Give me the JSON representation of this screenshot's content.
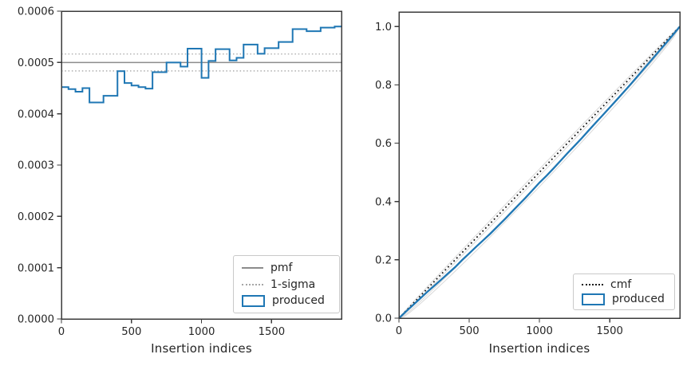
{
  "figure": {
    "background": "#ffffff",
    "text_color": "#262626",
    "spine_color": "#3b3b3b"
  },
  "chart_data": [
    {
      "type": "step",
      "title": "",
      "xlabel": "Insertion indices",
      "ylabel": "",
      "xlim": [
        0,
        1999
      ],
      "ylim": [
        0,
        0.0006
      ],
      "grid": false,
      "legend_position": "lower right",
      "xticks": [
        0,
        500,
        1000,
        1500
      ],
      "ytick_values": [
        0,
        0.0001,
        0.0002,
        0.0003,
        0.0004,
        0.0005,
        0.0006
      ],
      "ytick_labels": [
        "0.0000",
        "0.0001",
        "0.0002",
        "0.0003",
        "0.0004",
        "0.0005",
        "0.0006"
      ],
      "series": {
        "produced": {
          "color": "#1f77b4",
          "bin_start": 0,
          "bin_width": 50,
          "values": [
            0.000452,
            0.000448,
            0.000443,
            0.00045,
            0.000422,
            0.000422,
            0.000435,
            0.000435,
            0.000483,
            0.00046,
            0.000455,
            0.000452,
            0.000449,
            0.000481,
            0.000481,
            0.0005,
            0.0005,
            0.000492,
            0.000527,
            0.000527,
            0.00047,
            0.000503,
            0.000526,
            0.000526,
            0.000504,
            0.000509,
            0.000535,
            0.000535,
            0.000517,
            0.000528,
            0.000528,
            0.00054,
            0.00054,
            0.000565,
            0.000565,
            0.000561,
            0.000561,
            0.000568,
            0.000568,
            0.00057
          ]
        },
        "pmf": {
          "color": "#8c8c8c",
          "style": "solid",
          "value": 0.0005
        },
        "one_sigma": {
          "color": "#a6a6a6",
          "style": "dotted",
          "upper": 0.0005165,
          "lower": 0.0004835
        }
      },
      "legend": [
        {
          "label": "pmf",
          "swatch": "line-solid"
        },
        {
          "label": "1-sigma",
          "swatch": "line-dotted"
        },
        {
          "label": "produced",
          "swatch": "rect-outline"
        }
      ]
    },
    {
      "type": "line",
      "title": "",
      "xlabel": "Insertion indices",
      "ylabel": "",
      "xlim": [
        0,
        1999
      ],
      "ylim": [
        0,
        1.05
      ],
      "grid": false,
      "legend_position": "lower right",
      "xticks": [
        0,
        500,
        1000,
        1500
      ],
      "ytick_values": [
        0,
        0.2,
        0.4,
        0.6,
        0.8,
        1.0
      ],
      "ytick_labels": [
        "0.0",
        "0.2",
        "0.4",
        "0.6",
        "0.8",
        "1.0"
      ],
      "series": {
        "cmf": {
          "color": "#1a1a1a",
          "style": "dotted",
          "x": [
            0,
            1999
          ],
          "y": [
            0,
            1.0
          ]
        },
        "produced": {
          "color": "#1f77b4",
          "x": [
            0,
            50,
            100,
            150,
            200,
            250,
            300,
            350,
            400,
            450,
            500,
            550,
            600,
            650,
            700,
            750,
            800,
            850,
            900,
            950,
            1000,
            1050,
            1100,
            1150,
            1200,
            1250,
            1300,
            1350,
            1400,
            1450,
            1500,
            1550,
            1600,
            1650,
            1700,
            1750,
            1800,
            1850,
            1900,
            1950,
            1999
          ],
          "y": [
            0,
            0.0226,
            0.0449,
            0.0671,
            0.0895,
            0.1106,
            0.1317,
            0.1534,
            0.1751,
            0.1992,
            0.2221,
            0.2449,
            0.2674,
            0.2898,
            0.3139,
            0.3378,
            0.3628,
            0.3878,
            0.4123,
            0.4387,
            0.4649,
            0.4884,
            0.5136,
            0.5398,
            0.5661,
            0.5912,
            0.6166,
            0.6433,
            0.67,
            0.6958,
            0.7222,
            0.7486,
            0.7755,
            0.8025,
            0.8306,
            0.8589,
            0.8868,
            0.9149,
            0.9432,
            0.9716,
            1.0
          ]
        },
        "envelope": {
          "color": "#dcdcdc",
          "mid_offsets": [
            0.011,
            -0.012,
            -0.035,
            -0.049
          ],
          "shape": "2*sqrt(u*(1-u))"
        }
      },
      "legend": [
        {
          "label": "cmf",
          "swatch": "line-dotted-black"
        },
        {
          "label": "produced",
          "swatch": "rect-outline"
        }
      ]
    }
  ]
}
